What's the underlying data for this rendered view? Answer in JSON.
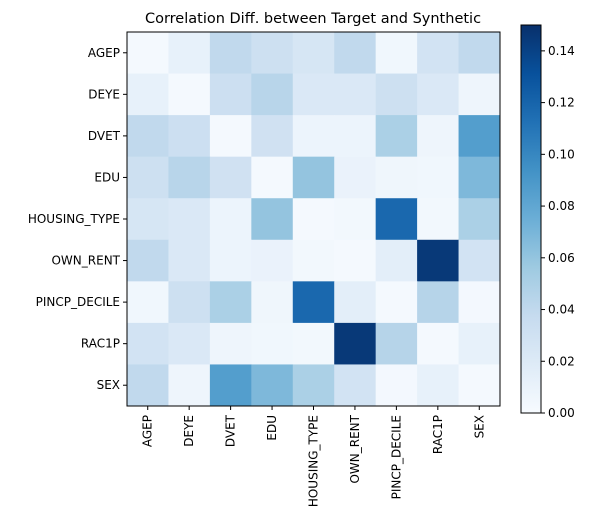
{
  "chart_data": {
    "type": "heatmap",
    "title": "Correlation Diff. between Target and Synthetic",
    "x_labels": [
      "AGEP",
      "DEYE",
      "DVET",
      "EDU",
      "HOUSING_TYPE",
      "OWN_RENT",
      "PINCP_DECILE",
      "RAC1P",
      "SEX"
    ],
    "y_labels": [
      "AGEP",
      "DEYE",
      "DVET",
      "EDU",
      "HOUSING_TYPE",
      "OWN_RENT",
      "PINCP_DECILE",
      "RAC1P",
      "SEX"
    ],
    "values": [
      [
        0.002,
        0.012,
        0.04,
        0.032,
        0.025,
        0.04,
        0.005,
        0.028,
        0.04
      ],
      [
        0.012,
        0.002,
        0.033,
        0.044,
        0.022,
        0.022,
        0.032,
        0.022,
        0.007
      ],
      [
        0.04,
        0.033,
        0.002,
        0.03,
        0.008,
        0.008,
        0.05,
        0.007,
        0.086
      ],
      [
        0.032,
        0.044,
        0.03,
        0.002,
        0.06,
        0.01,
        0.006,
        0.005,
        0.068
      ],
      [
        0.025,
        0.022,
        0.008,
        0.06,
        0.002,
        0.004,
        0.118,
        0.004,
        0.05
      ],
      [
        0.04,
        0.022,
        0.008,
        0.01,
        0.004,
        0.002,
        0.015,
        0.145,
        0.028
      ],
      [
        0.005,
        0.032,
        0.05,
        0.006,
        0.118,
        0.015,
        0.002,
        0.045,
        0.003
      ],
      [
        0.028,
        0.022,
        0.007,
        0.005,
        0.004,
        0.145,
        0.045,
        0.002,
        0.012
      ],
      [
        0.04,
        0.007,
        0.086,
        0.068,
        0.05,
        0.028,
        0.003,
        0.012,
        0.002
      ]
    ],
    "colorbar": {
      "min": 0.0,
      "max": 0.15,
      "ticks": [
        "0.00",
        "0.02",
        "0.04",
        "0.06",
        "0.08",
        "0.10",
        "0.12",
        "0.14"
      ],
      "colormap": [
        "#f7fbff",
        "#deebf7",
        "#c6dbef",
        "#9ecae1",
        "#6baed6",
        "#4292c6",
        "#2171b5",
        "#08519c",
        "#08306b"
      ]
    }
  }
}
